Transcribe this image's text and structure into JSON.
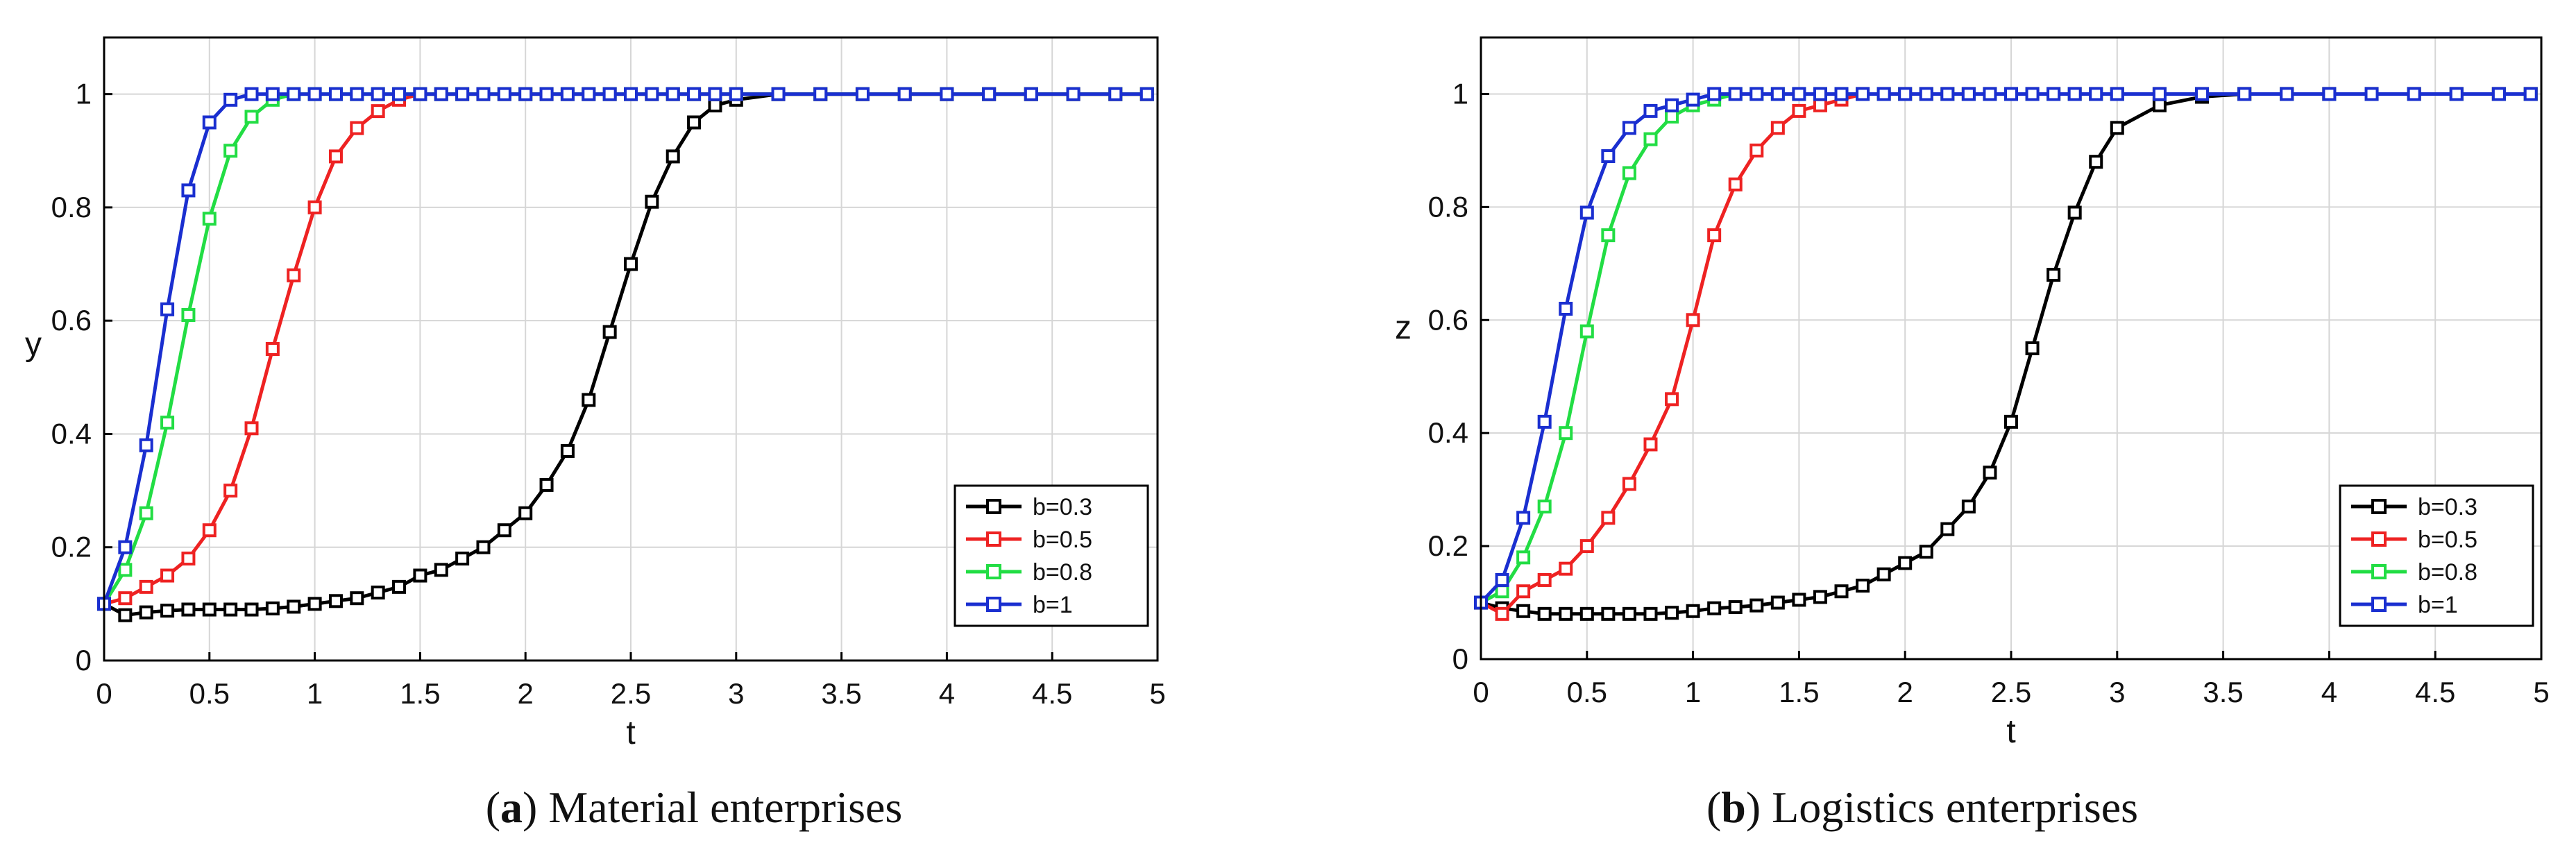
{
  "figure": {
    "captions": [
      {
        "letter": "a",
        "open": "(",
        "close": ")",
        "text": " Material enterprises"
      },
      {
        "letter": "b",
        "open": "(",
        "close": ")",
        "text": " Logistics enterprises"
      }
    ]
  },
  "chart_data": [
    {
      "type": "line",
      "title": "",
      "xlabel": "t",
      "ylabel": "y",
      "xlim": [
        0,
        5
      ],
      "ylim": [
        0,
        1.1
      ],
      "xticks": [
        "0",
        "0.5",
        "1",
        "1.5",
        "2",
        "2.5",
        "3",
        "3.5",
        "4",
        "4.5",
        "5"
      ],
      "yticks": [
        "0",
        "0.2",
        "0.4",
        "0.6",
        "0.8",
        "1"
      ],
      "grid": true,
      "legend": "bottom-right",
      "x": [
        0,
        0.1,
        0.2,
        0.3,
        0.4,
        0.5,
        0.6,
        0.7,
        0.8,
        0.9,
        1.0,
        1.1,
        1.2,
        1.3,
        1.4,
        1.5,
        1.6,
        1.7,
        1.8,
        1.9,
        2.0,
        2.1,
        2.2,
        2.3,
        2.4,
        2.5,
        2.6,
        2.7,
        2.8,
        2.9,
        3.0,
        3.2,
        3.4,
        3.6,
        3.8,
        4.0,
        4.2,
        4.4,
        4.6,
        4.8,
        4.95
      ],
      "series": [
        {
          "name": "b=0.3",
          "color": "#000000",
          "values": [
            0.1,
            0.08,
            0.085,
            0.088,
            0.09,
            0.09,
            0.09,
            0.09,
            0.092,
            0.095,
            0.1,
            0.105,
            0.11,
            0.12,
            0.13,
            0.15,
            0.16,
            0.18,
            0.2,
            0.23,
            0.26,
            0.31,
            0.37,
            0.46,
            0.58,
            0.7,
            0.81,
            0.89,
            0.95,
            0.98,
            0.99,
            1.0,
            1.0,
            1.0,
            1.0,
            1.0,
            1.0,
            1.0,
            1.0,
            1.0,
            1.0
          ]
        },
        {
          "name": "b=0.5",
          "color": "#ee2222",
          "values": [
            0.1,
            0.11,
            0.13,
            0.15,
            0.18,
            0.23,
            0.3,
            0.41,
            0.55,
            0.68,
            0.8,
            0.89,
            0.94,
            0.97,
            0.99,
            1.0,
            1.0,
            1.0,
            1.0,
            1.0,
            1.0,
            1.0,
            1.0,
            1.0,
            1.0,
            1.0,
            1.0,
            1.0,
            1.0,
            1.0,
            1.0,
            1.0,
            1.0,
            1.0,
            1.0,
            1.0,
            1.0,
            1.0,
            1.0,
            1.0,
            1.0
          ]
        },
        {
          "name": "b=0.8",
          "color": "#22dd44",
          "values": [
            0.1,
            0.16,
            0.26,
            0.42,
            0.61,
            0.78,
            0.9,
            0.96,
            0.99,
            1.0,
            1.0,
            1.0,
            1.0,
            1.0,
            1.0,
            1.0,
            1.0,
            1.0,
            1.0,
            1.0,
            1.0,
            1.0,
            1.0,
            1.0,
            1.0,
            1.0,
            1.0,
            1.0,
            1.0,
            1.0,
            1.0,
            1.0,
            1.0,
            1.0,
            1.0,
            1.0,
            1.0,
            1.0,
            1.0,
            1.0,
            1.0
          ]
        },
        {
          "name": "b=1",
          "color": "#1a2fd0",
          "values": [
            0.1,
            0.2,
            0.38,
            0.62,
            0.83,
            0.95,
            0.99,
            1.0,
            1.0,
            1.0,
            1.0,
            1.0,
            1.0,
            1.0,
            1.0,
            1.0,
            1.0,
            1.0,
            1.0,
            1.0,
            1.0,
            1.0,
            1.0,
            1.0,
            1.0,
            1.0,
            1.0,
            1.0,
            1.0,
            1.0,
            1.0,
            1.0,
            1.0,
            1.0,
            1.0,
            1.0,
            1.0,
            1.0,
            1.0,
            1.0,
            1.0
          ]
        }
      ]
    },
    {
      "type": "line",
      "title": "",
      "xlabel": "t",
      "ylabel": "z",
      "xlim": [
        0,
        5
      ],
      "ylim": [
        0,
        1.1
      ],
      "xticks": [
        "0",
        "0.5",
        "1",
        "1.5",
        "2",
        "2.5",
        "3",
        "3.5",
        "4",
        "4.5",
        "5"
      ],
      "yticks": [
        "0",
        "0.2",
        "0.4",
        "0.6",
        "0.8",
        "1"
      ],
      "grid": true,
      "legend": "bottom-right",
      "x": [
        0,
        0.1,
        0.2,
        0.3,
        0.4,
        0.5,
        0.6,
        0.7,
        0.8,
        0.9,
        1.0,
        1.1,
        1.2,
        1.3,
        1.4,
        1.5,
        1.6,
        1.7,
        1.8,
        1.9,
        2.0,
        2.1,
        2.2,
        2.3,
        2.4,
        2.5,
        2.6,
        2.7,
        2.8,
        2.9,
        3.0,
        3.2,
        3.4,
        3.6,
        3.8,
        4.0,
        4.2,
        4.4,
        4.6,
        4.8,
        4.95
      ],
      "series": [
        {
          "name": "b=0.3",
          "color": "#000000",
          "values": [
            0.1,
            0.09,
            0.085,
            0.08,
            0.08,
            0.08,
            0.08,
            0.08,
            0.08,
            0.082,
            0.085,
            0.09,
            0.092,
            0.095,
            0.1,
            0.105,
            0.11,
            0.12,
            0.13,
            0.15,
            0.17,
            0.19,
            0.23,
            0.27,
            0.33,
            0.42,
            0.55,
            0.68,
            0.79,
            0.88,
            0.94,
            0.98,
            0.995,
            1.0,
            1.0,
            1.0,
            1.0,
            1.0,
            1.0,
            1.0,
            1.0
          ]
        },
        {
          "name": "b=0.5",
          "color": "#ee2222",
          "values": [
            0.1,
            0.08,
            0.12,
            0.14,
            0.16,
            0.2,
            0.25,
            0.31,
            0.38,
            0.46,
            0.6,
            0.75,
            0.84,
            0.9,
            0.94,
            0.97,
            0.98,
            0.99,
            1.0,
            1.0,
            1.0,
            1.0,
            1.0,
            1.0,
            1.0,
            1.0,
            1.0,
            1.0,
            1.0,
            1.0,
            1.0,
            1.0,
            1.0,
            1.0,
            1.0,
            1.0,
            1.0,
            1.0,
            1.0,
            1.0,
            1.0
          ]
        },
        {
          "name": "b=0.8",
          "color": "#22dd44",
          "values": [
            0.1,
            0.12,
            0.18,
            0.27,
            0.4,
            0.58,
            0.75,
            0.86,
            0.92,
            0.96,
            0.98,
            0.99,
            1.0,
            1.0,
            1.0,
            1.0,
            1.0,
            1.0,
            1.0,
            1.0,
            1.0,
            1.0,
            1.0,
            1.0,
            1.0,
            1.0,
            1.0,
            1.0,
            1.0,
            1.0,
            1.0,
            1.0,
            1.0,
            1.0,
            1.0,
            1.0,
            1.0,
            1.0,
            1.0,
            1.0,
            1.0
          ]
        },
        {
          "name": "b=1",
          "color": "#1a2fd0",
          "values": [
            0.1,
            0.14,
            0.25,
            0.42,
            0.62,
            0.79,
            0.89,
            0.94,
            0.97,
            0.98,
            0.99,
            1.0,
            1.0,
            1.0,
            1.0,
            1.0,
            1.0,
            1.0,
            1.0,
            1.0,
            1.0,
            1.0,
            1.0,
            1.0,
            1.0,
            1.0,
            1.0,
            1.0,
            1.0,
            1.0,
            1.0,
            1.0,
            1.0,
            1.0,
            1.0,
            1.0,
            1.0,
            1.0,
            1.0,
            1.0,
            1.0
          ]
        }
      ]
    }
  ]
}
